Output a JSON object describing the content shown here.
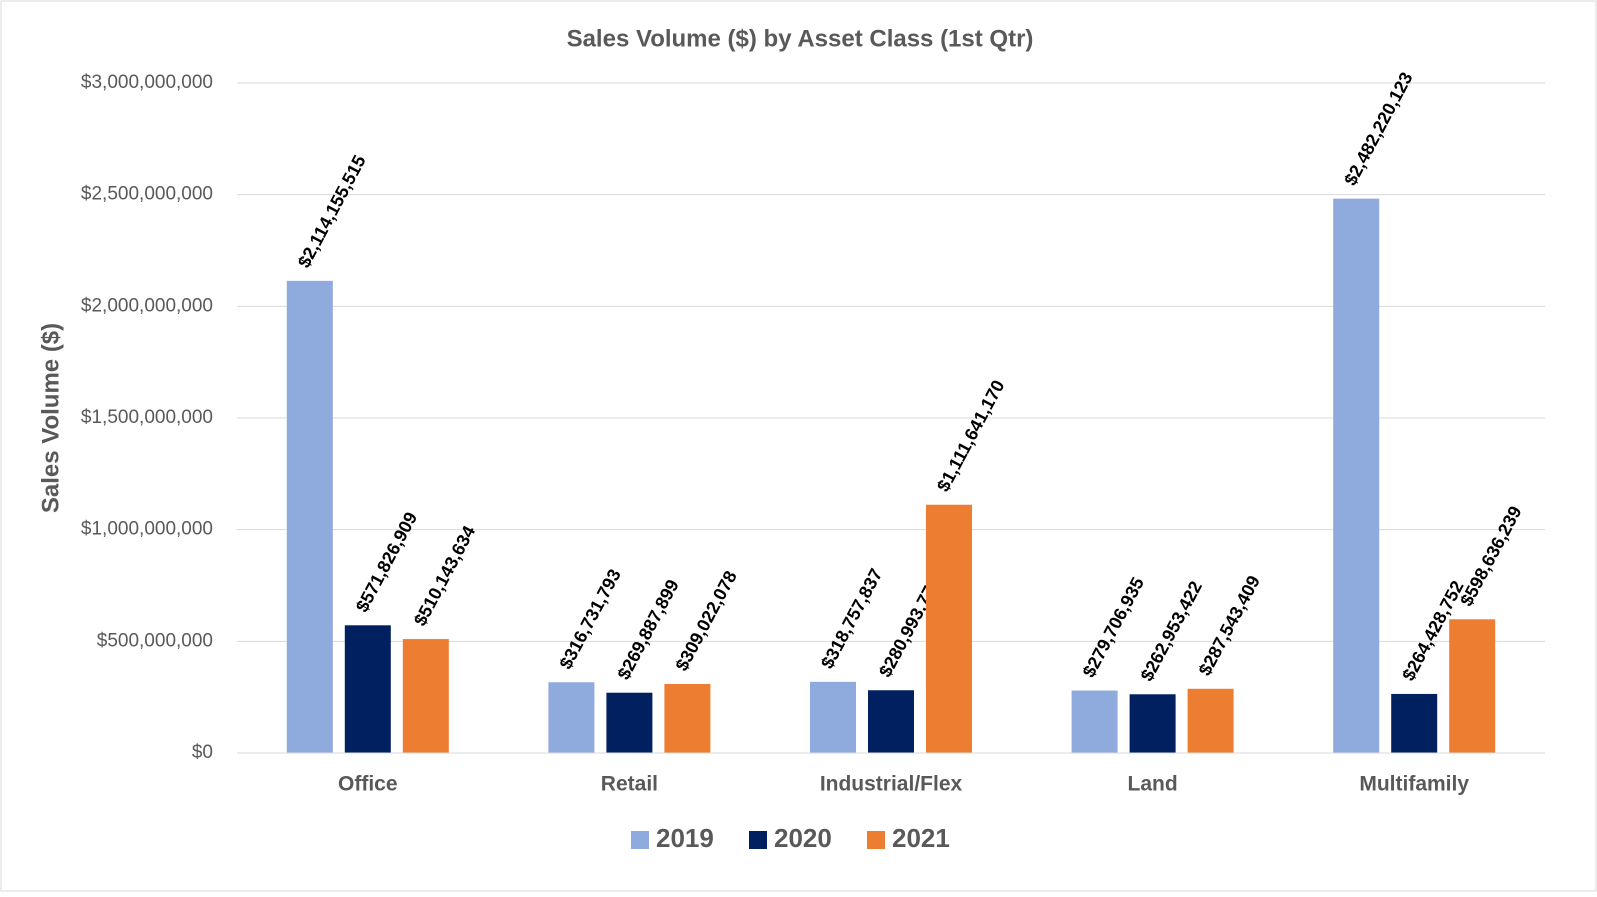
{
  "chart_data": {
    "type": "bar",
    "title": "Sales Volume ($) by Asset Class (1st Qtr)",
    "y_label": "Sales Volume ($)",
    "categories": [
      "Office",
      "Retail",
      "Industrial/Flex",
      "Land",
      "Multifamily"
    ],
    "series": [
      {
        "name": "2019",
        "color": "#8faadc",
        "values": [
          2114155515,
          316731793,
          318757837,
          279706935,
          2482220123
        ],
        "value_labels": [
          "$2,114,155,515",
          "$316,731,793",
          "$318,757,837",
          "$279,706,935",
          "$2,482,220,123"
        ]
      },
      {
        "name": "2020",
        "color": "#002060",
        "values": [
          571826909,
          269887899,
          280993775,
          262953422,
          264428752
        ],
        "value_labels": [
          "$571,826,909",
          "$269,887,899",
          "$280,993,775",
          "$262,953,422",
          "$264,428,752"
        ]
      },
      {
        "name": "2021",
        "color": "#ed7d31",
        "values": [
          510143634,
          309022078,
          1111641170,
          287543409,
          598636239
        ],
        "value_labels": [
          "$510,143,634",
          "$309,022,078",
          "$1,111,641,170",
          "$287,543,409",
          "$598,636,239"
        ]
      }
    ],
    "ylim": [
      0,
      3000000000
    ],
    "yticks": [
      {
        "value": 0,
        "label": "$0"
      },
      {
        "value": 500000000,
        "label": "$500,000,000"
      },
      {
        "value": 1000000000,
        "label": "$1,000,000,000"
      },
      {
        "value": 1500000000,
        "label": "$1,500,000,000"
      },
      {
        "value": 2000000000,
        "label": "$2,000,000,000"
      },
      {
        "value": 2500000000,
        "label": "$2,500,000,000"
      },
      {
        "value": 3000000000,
        "label": "$3,000,000,000"
      }
    ],
    "grid": true,
    "legend": "bottom"
  }
}
